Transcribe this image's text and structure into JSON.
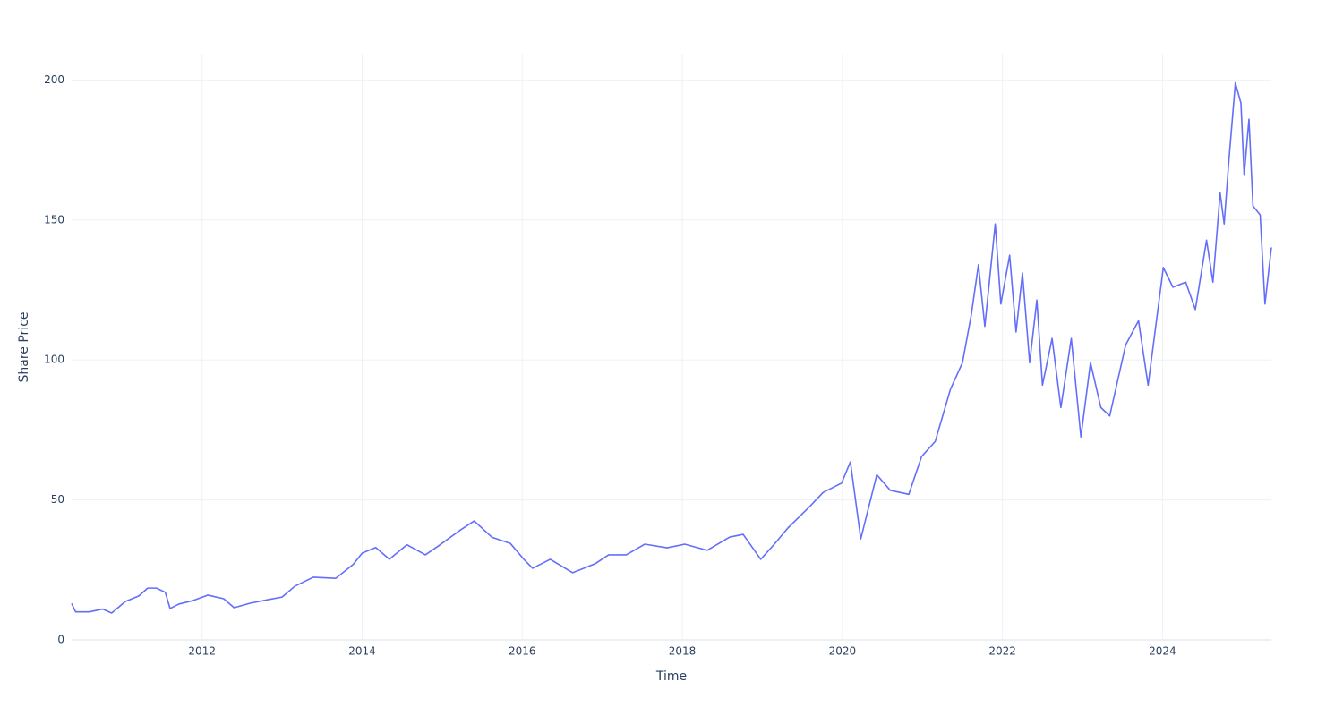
{
  "chart_data": {
    "type": "line",
    "x_label": "Time",
    "y_label": "Share Price",
    "x": [
      2010.37,
      2010.42,
      2010.59,
      2010.76,
      2010.87,
      2011.04,
      2011.21,
      2011.32,
      2011.43,
      2011.54,
      2011.6,
      2011.71,
      2011.88,
      2012.07,
      2012.27,
      2012.4,
      2012.6,
      2012.83,
      2013.0,
      2013.16,
      2013.39,
      2013.67,
      2013.89,
      2014.0,
      2014.17,
      2014.34,
      2014.56,
      2014.79,
      2014.95,
      2015.23,
      2015.4,
      2015.62,
      2015.85,
      2016.02,
      2016.13,
      2016.35,
      2016.63,
      2016.91,
      2017.08,
      2017.3,
      2017.53,
      2017.81,
      2018.03,
      2018.31,
      2018.59,
      2018.76,
      2018.98,
      2019.15,
      2019.32,
      2019.6,
      2019.76,
      2019.99,
      2020.1,
      2020.23,
      2020.43,
      2020.6,
      2020.83,
      2020.99,
      2021.16,
      2021.35,
      2021.5,
      2021.61,
      2021.7,
      2021.78,
      2021.91,
      2021.98,
      2022.09,
      2022.17,
      2022.25,
      2022.34,
      2022.43,
      2022.5,
      2022.62,
      2022.73,
      2022.86,
      2022.98,
      2023.1,
      2023.23,
      2023.34,
      2023.54,
      2023.7,
      2023.82,
      2024.01,
      2024.13,
      2024.29,
      2024.41,
      2024.55,
      2024.63,
      2024.72,
      2024.77,
      2024.83,
      2024.91,
      2024.98,
      2025.02,
      2025.08,
      2025.13,
      2025.22,
      2025.28,
      2025.36
    ],
    "values": [
      13,
      10,
      10,
      11,
      9.6,
      13.7,
      15.7,
      18.5,
      18.5,
      17,
      11.2,
      12.8,
      14,
      16,
      14.7,
      11.5,
      13.1,
      14.4,
      15.3,
      19.2,
      22.4,
      22,
      27,
      31,
      33,
      28.8,
      34,
      30.4,
      33.5,
      39.3,
      42.5,
      36.7,
      34.5,
      28.8,
      25.6,
      28.8,
      24,
      27.2,
      30.4,
      30.4,
      34.2,
      32.9,
      34.2,
      32,
      36.7,
      37.7,
      28.8,
      34.2,
      40,
      47.9,
      52.7,
      56,
      63.6,
      36.1,
      59,
      53.4,
      52,
      65.5,
      70.9,
      89.5,
      99,
      116,
      134,
      112,
      148.6,
      120,
      137.4,
      110,
      131,
      99,
      121.4,
      91,
      107.7,
      83,
      107.7,
      72.5,
      99,
      83,
      80,
      105.4,
      114,
      91,
      133,
      126,
      127.8,
      118,
      142.8,
      127.8,
      159.7,
      148.6,
      171.6,
      199,
      191.7,
      166,
      186,
      155,
      151.8,
      120,
      140.2
    ],
    "color": "#636efa",
    "xlim": [
      2010.37,
      2025.36
    ],
    "xticks": [
      2012,
      2014,
      2016,
      2018,
      2020,
      2022,
      2024
    ],
    "ylim": [
      0,
      209.4
    ],
    "yticks": [
      0,
      50,
      100,
      150,
      200
    ],
    "grid": true
  }
}
